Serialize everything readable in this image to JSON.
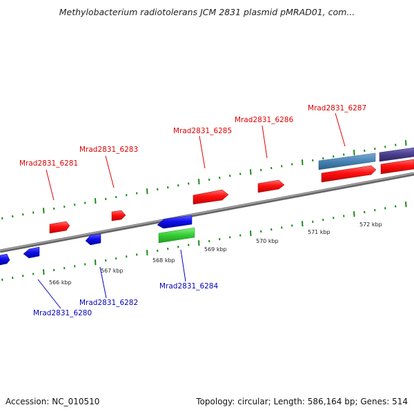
{
  "title": "Methylobacterium radiotolerans JCM 2831 plasmid pMRAD01, com...",
  "footer": {
    "accession": "Accession: NC_010510",
    "stats": "Topology: circular; Length: 586,164 bp; Genes: 514"
  },
  "colors": {
    "forward_gene": "#ff1010",
    "reverse_gene": "#1010ee",
    "forward_label": "#dd0000",
    "reverse_label": "#0000bb",
    "tick": "#228b22",
    "backbone": "#808080",
    "green_feature": "#33cc33",
    "steelblue_feature": "#4682b4",
    "purple_feature": "#483d8b"
  },
  "scale_labels": [
    "566 kbp",
    "567 kbp",
    "568 kbp",
    "569 kbp",
    "570 kbp",
    "571 kbp",
    "572 kbp"
  ],
  "gene_labels": {
    "forward": [
      "Mrad2831_6281",
      "Mrad2831_6283",
      "Mrad2831_6285",
      "Mrad2831_6286",
      "Mrad2831_6287"
    ],
    "reverse": [
      "Mrad2831_6280",
      "Mrad2831_6282",
      "Mrad2831_6284"
    ]
  }
}
